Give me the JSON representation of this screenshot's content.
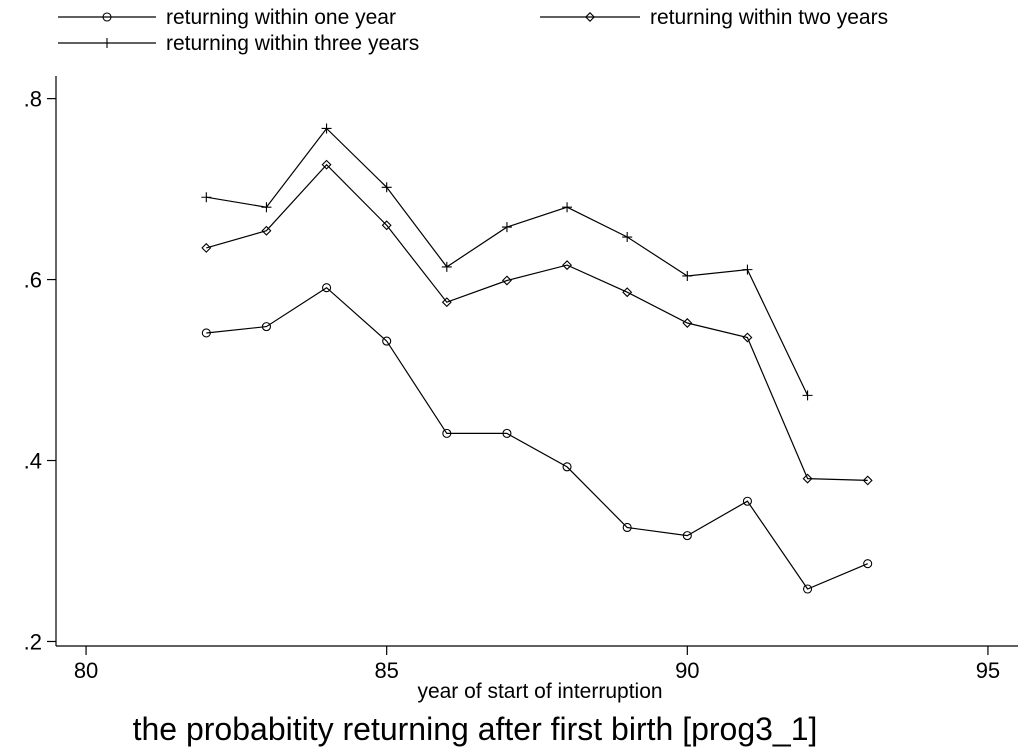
{
  "chart_data": {
    "type": "line",
    "title": "the probabitity returning after first birth [prog3_1]",
    "xlabel": "year of start of interruption",
    "ylabel": "",
    "xlim": [
      79.5,
      95.5
    ],
    "ylim": [
      0.195,
      0.825
    ],
    "xticks": [
      80,
      85,
      90,
      95
    ],
    "xtick_labels": [
      "80",
      "85",
      "90",
      "95"
    ],
    "yticks": [
      0.2,
      0.4,
      0.6,
      0.8
    ],
    "ytick_labels": [
      ".2",
      ".4",
      ".6",
      ".8"
    ],
    "grid": false,
    "legend_position": "top",
    "series": [
      {
        "name": "returning within one year",
        "marker": "circle",
        "x": [
          82,
          83,
          84,
          85,
          86,
          87,
          88,
          89,
          90,
          91,
          92,
          93
        ],
        "y": [
          0.541,
          0.548,
          0.591,
          0.532,
          0.43,
          0.43,
          0.393,
          0.326,
          0.317,
          0.355,
          0.258,
          0.286
        ]
      },
      {
        "name": "returning within two years",
        "marker": "diamond",
        "x": [
          82,
          83,
          84,
          85,
          86,
          87,
          88,
          89,
          90,
          91,
          92,
          93
        ],
        "y": [
          0.635,
          0.654,
          0.727,
          0.66,
          0.575,
          0.599,
          0.616,
          0.586,
          0.552,
          0.536,
          0.38,
          0.378
        ]
      },
      {
        "name": "returning within three years",
        "marker": "plus",
        "x": [
          82,
          83,
          84,
          85,
          86,
          87,
          88,
          89,
          90,
          91,
          92
        ],
        "y": [
          0.691,
          0.68,
          0.767,
          0.702,
          0.614,
          0.658,
          0.68,
          0.647,
          0.604,
          0.611,
          0.472
        ]
      }
    ]
  }
}
